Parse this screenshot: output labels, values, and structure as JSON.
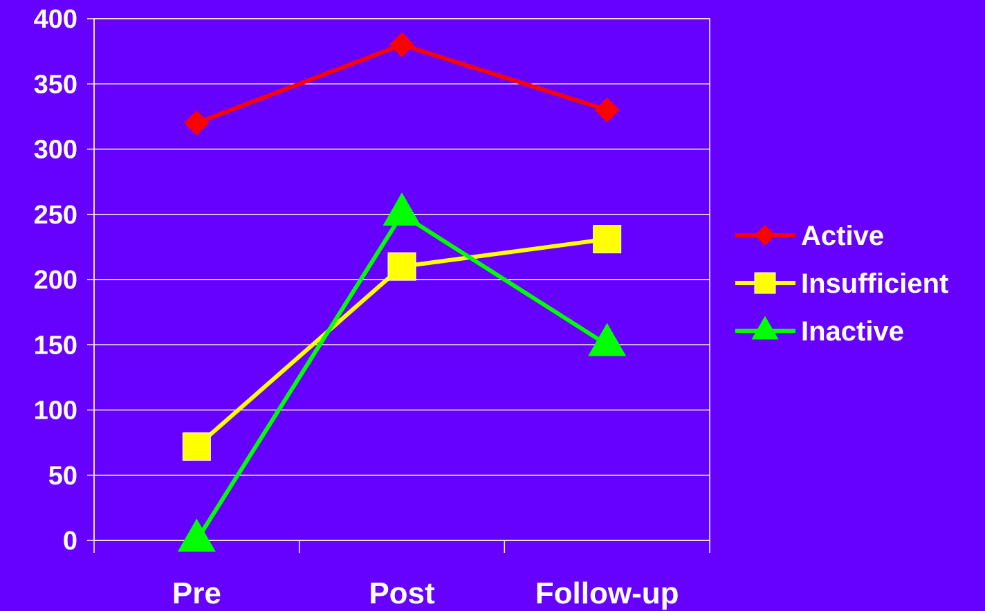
{
  "chart_data": {
    "type": "line",
    "title": "",
    "xlabel": "",
    "ylabel": "",
    "categories": [
      "Pre",
      "Post",
      "Follow-up"
    ],
    "ylim": [
      0,
      400
    ],
    "yticks": [
      "0",
      "50",
      "100",
      "150",
      "200",
      "250",
      "300",
      "350",
      "400"
    ],
    "grid": true,
    "legend_position": "right",
    "background_color": "#6600FF",
    "series": [
      {
        "name": "Active",
        "values": [
          320,
          380,
          330
        ],
        "color": "#FF0000",
        "marker": "diamond"
      },
      {
        "name": "Insufficient",
        "values": [
          72,
          210,
          231
        ],
        "color": "#FFFF00",
        "marker": "square"
      },
      {
        "name": "Inactive",
        "values": [
          0,
          250,
          150
        ],
        "color": "#00FF00",
        "marker": "triangle"
      }
    ]
  }
}
